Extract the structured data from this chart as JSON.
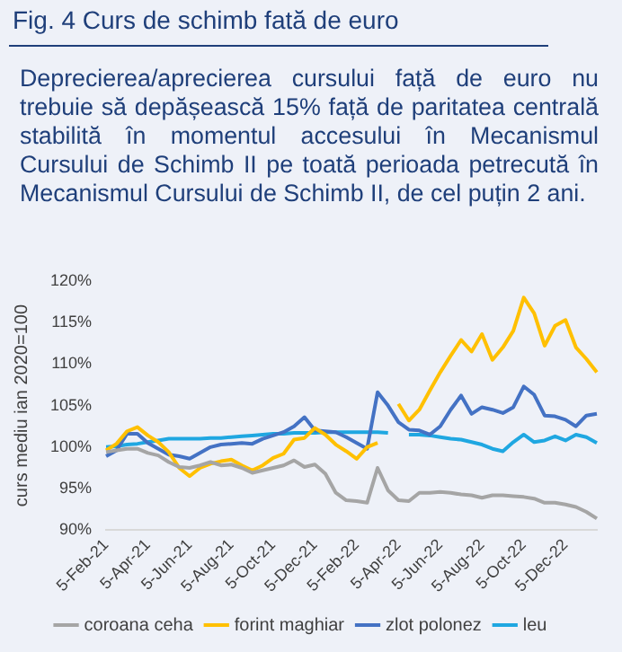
{
  "chart_data": {
    "type": "line",
    "title": "Fig. 4 Curs de schimb fată de euro",
    "subtitle": "Deprecierea/aprecierea cursului față de euro nu trebuie să depășească 15% față de paritatea centrală stabilită în momentul accesului în Mecanismul Cursului de Schimb II pe toată perioada petrecută în Mecanismul Cursului de Schimb II, de cel puțin 2 ani.",
    "ylabel": "curs mediu ian 2020=100",
    "categories": [
      "5-Feb-21",
      null,
      null,
      null,
      "5-Apr-21",
      null,
      null,
      null,
      "5-Jun-21",
      null,
      null,
      null,
      "5-Aug-21",
      null,
      null,
      null,
      "5-Oct-21",
      null,
      null,
      null,
      "5-Dec-21",
      null,
      null,
      null,
      "5-Feb-22",
      null,
      null,
      null,
      "5-Apr-22",
      null,
      null,
      null,
      "5-Jun-22",
      null,
      null,
      null,
      "5-Aug-22",
      null,
      null,
      null,
      "5-Oct-22",
      null,
      null,
      null,
      "5-Dec-22",
      null,
      null,
      null
    ],
    "series": [
      {
        "name": "coroana ceha",
        "color": "#a5a5a5",
        "values": [
          99.4,
          99.6,
          99.8,
          99.8,
          99.3,
          99,
          98.2,
          97.6,
          97.5,
          97.8,
          98.2,
          97.8,
          97.9,
          97.5,
          96.9,
          97.2,
          97.5,
          97.8,
          98.4,
          97.6,
          97.9,
          96.8,
          94.5,
          93.6,
          93.5,
          93.3,
          97.5,
          94.8,
          93.6,
          93.5,
          94.5,
          94.5,
          94.6,
          94.5,
          94.3,
          94.2,
          93.9,
          94.2,
          94.2,
          94.1,
          94,
          93.8,
          93.3,
          93.3,
          93.1,
          92.8,
          92.2,
          91.4
        ]
      },
      {
        "name": "forint maghiar",
        "color": "#ffc000",
        "values": [
          99.6,
          100.4,
          101.9,
          102.4,
          101.4,
          100.6,
          99.4,
          97.5,
          96.5,
          97.5,
          98,
          98.3,
          98.5,
          97.8,
          97.2,
          97.8,
          98.7,
          99.2,
          100.9,
          101.1,
          102.3,
          101.5,
          100.3,
          99.5,
          98.6,
          100,
          100.5,
          null,
          105.2,
          103.2,
          104.5,
          106.8,
          109,
          111,
          112.9,
          111.5,
          113.6,
          110.5,
          112,
          114,
          118,
          116.1,
          112.2,
          114.6,
          115.3,
          112,
          110.6,
          109
        ]
      },
      {
        "name": "zlot polonez",
        "color": "#4472c4",
        "values": [
          98.9,
          99.6,
          101.6,
          101.6,
          100.5,
          99.8,
          99.1,
          98.9,
          98.6,
          99.3,
          100,
          100.3,
          100.4,
          100.5,
          100.4,
          101,
          101.4,
          101.8,
          102.5,
          103.6,
          102,
          101.9,
          101.8,
          101.2,
          100.5,
          99.8,
          106.6,
          105,
          103,
          102.1,
          102,
          101.5,
          102.5,
          104.5,
          106.2,
          104,
          104.8,
          104.5,
          104.1,
          104.8,
          107.3,
          106.3,
          103.8,
          103.7,
          103.3,
          102.5,
          103.8,
          104
        ]
      },
      {
        "name": "leu",
        "color": "#1fa7e1",
        "values": [
          100,
          100.1,
          100.3,
          100.4,
          100.6,
          100.8,
          101,
          101,
          101,
          101,
          101.1,
          101.1,
          101.2,
          101.3,
          101.4,
          101.5,
          101.6,
          101.6,
          101.7,
          101.7,
          101.7,
          101.8,
          101.8,
          101.8,
          101.8,
          101.8,
          101.8,
          101.7,
          null,
          101.5,
          101.5,
          101.4,
          101.2,
          101,
          100.9,
          100.6,
          100.3,
          99.8,
          99.5,
          100.6,
          101.5,
          100.6,
          100.8,
          101.3,
          100.8,
          101.5,
          101.2,
          100.5
        ]
      }
    ],
    "ylim": [
      90,
      120
    ],
    "yticks": [
      {
        "value": 90,
        "label": "90%"
      },
      {
        "value": 95,
        "label": "95%"
      },
      {
        "value": 100,
        "label": "100%"
      },
      {
        "value": 105,
        "label": "105%"
      },
      {
        "value": 110,
        "label": "110%"
      },
      {
        "value": 115,
        "label": "115%"
      },
      {
        "value": 120,
        "label": "120%"
      }
    ],
    "grid": false,
    "legend": "bottom",
    "marker": "none",
    "line_style": "solid"
  }
}
